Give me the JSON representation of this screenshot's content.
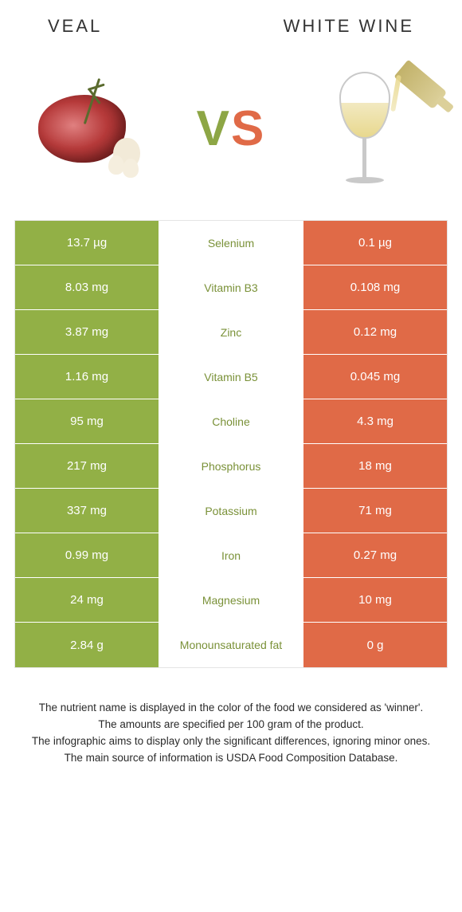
{
  "colors": {
    "left_bg": "#92b046",
    "right_bg": "#e06a47",
    "winner_left_text": "#7a9138",
    "winner_right_text": "#e06a47",
    "footnote_text": "#2a2a2a"
  },
  "header": {
    "left_title": "VEAL",
    "right_title": "WHITE WINE"
  },
  "vs": {
    "v": "V",
    "s": "S"
  },
  "rows": [
    {
      "left": "13.7 µg",
      "label": "Selenium",
      "right": "0.1 µg",
      "winner": "left"
    },
    {
      "left": "8.03 mg",
      "label": "Vitamin B3",
      "right": "0.108 mg",
      "winner": "left"
    },
    {
      "left": "3.87 mg",
      "label": "Zinc",
      "right": "0.12 mg",
      "winner": "left"
    },
    {
      "left": "1.16 mg",
      "label": "Vitamin B5",
      "right": "0.045 mg",
      "winner": "left"
    },
    {
      "left": "95 mg",
      "label": "Choline",
      "right": "4.3 mg",
      "winner": "left"
    },
    {
      "left": "217 mg",
      "label": "Phosphorus",
      "right": "18 mg",
      "winner": "left"
    },
    {
      "left": "337 mg",
      "label": "Potassium",
      "right": "71 mg",
      "winner": "left"
    },
    {
      "left": "0.99 mg",
      "label": "Iron",
      "right": "0.27 mg",
      "winner": "left"
    },
    {
      "left": "24 mg",
      "label": "Magnesium",
      "right": "10 mg",
      "winner": "left"
    },
    {
      "left": "2.84 g",
      "label": "Monounsaturated fat",
      "right": "0 g",
      "winner": "left"
    }
  ],
  "footnotes": [
    "The nutrient name is displayed in the color of the food we considered as 'winner'.",
    "The amounts are specified per 100 gram of the product.",
    "The infographic aims to display only the significant differences, ignoring minor ones.",
    "The main source of information is USDA Food Composition Database."
  ]
}
